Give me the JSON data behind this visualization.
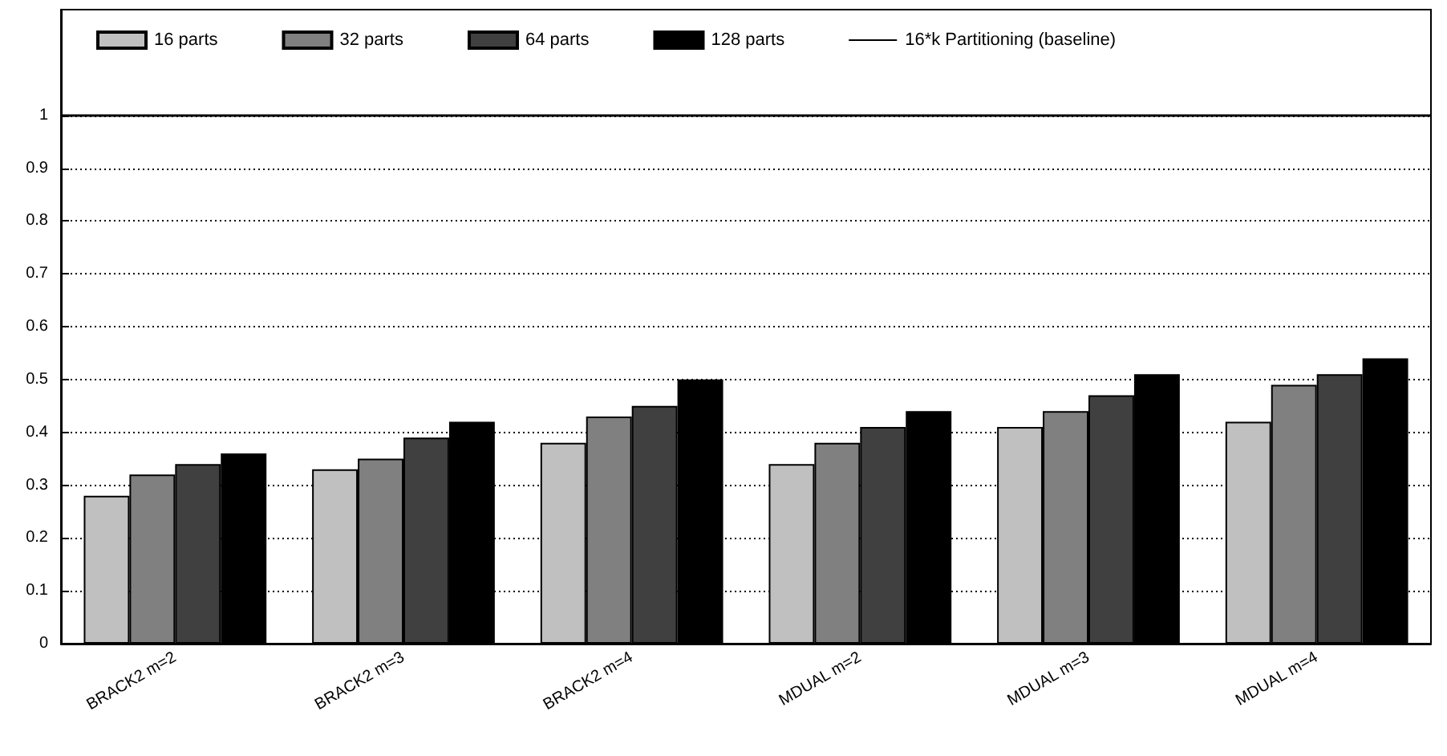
{
  "chart_data": {
    "type": "bar",
    "categories": [
      "BRACK2 m=2",
      "BRACK2 m=3",
      "BRACK2 m=4",
      "MDUAL m=2",
      "MDUAL m=3",
      "MDUAL m=4"
    ],
    "series": [
      {
        "name": "16 parts",
        "color": "#c0c0c0",
        "values": [
          0.28,
          0.33,
          0.38,
          0.34,
          0.41,
          0.42
        ]
      },
      {
        "name": "32 parts",
        "color": "#808080",
        "values": [
          0.32,
          0.35,
          0.43,
          0.38,
          0.44,
          0.49
        ]
      },
      {
        "name": "64 parts",
        "color": "#404040",
        "values": [
          0.34,
          0.39,
          0.45,
          0.41,
          0.47,
          0.51
        ]
      },
      {
        "name": "128 parts",
        "color": "#000000",
        "values": [
          0.36,
          0.42,
          0.5,
          0.44,
          0.51,
          0.54
        ]
      }
    ],
    "ref_lines": [
      {
        "axis": "y",
        "value": 1,
        "label": "16*k Partitioning (baseline)",
        "color": "#000000",
        "line_style": "solid"
      }
    ],
    "ylim": [
      0,
      1.2
    ],
    "yticks": [
      0,
      0.1,
      0.2,
      0.3,
      0.4,
      0.5,
      0.6,
      0.7,
      0.8,
      0.9,
      1
    ],
    "grid": "y",
    "legend": "top"
  }
}
